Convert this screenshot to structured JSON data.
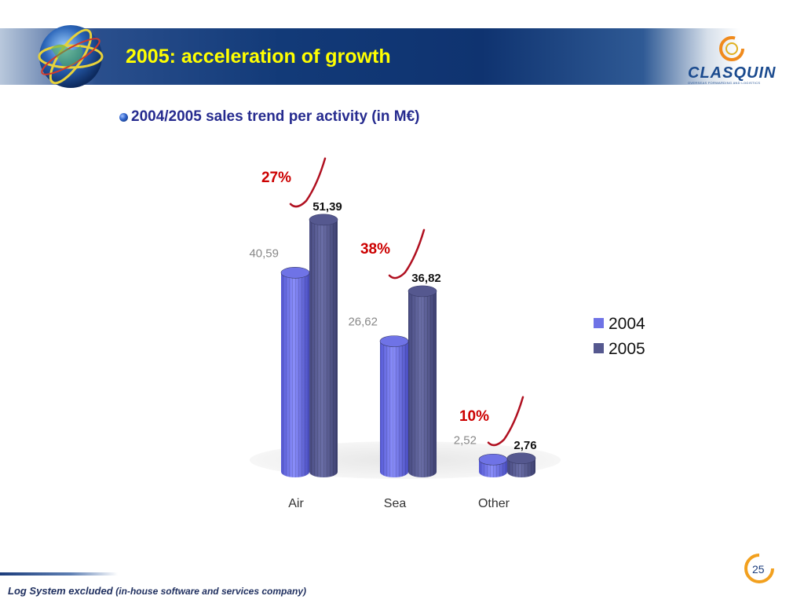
{
  "slide": {
    "title": "2005: acceleration of growth",
    "subtitle": "2004/2005 sales trend per activity (in M€)",
    "footnote_main": "Log System excluded",
    "footnote_detail": "(in-house software and services company)",
    "page_number": "25"
  },
  "logo": {
    "text": "CLASQUIN",
    "tagline": "OVERSEAS FORWARDING AND LOGISTICS"
  },
  "colors": {
    "title": "#ffff00",
    "subtitle": "#262b8f",
    "series_2004": "#6f73e6",
    "series_2005": "#55588f",
    "growth": "#cc0000",
    "label_2004": "#888888",
    "label_2005": "#111111"
  },
  "chart_data": {
    "type": "bar",
    "style": "3d-cylinder",
    "categories": [
      "Air",
      "Sea",
      "Other"
    ],
    "series": [
      {
        "name": "2004",
        "values": [
          40.59,
          26.62,
          2.52
        ],
        "labels": [
          "40,59",
          "26,62",
          "2,52"
        ]
      },
      {
        "name": "2005",
        "values": [
          51.39,
          36.82,
          2.76
        ],
        "labels": [
          "51,39",
          "36,82",
          "2,76"
        ]
      }
    ],
    "growth_labels": [
      "27%",
      "38%",
      "10%"
    ],
    "legend": [
      "2004",
      "2005"
    ],
    "legend_position": "right",
    "grid": false
  }
}
